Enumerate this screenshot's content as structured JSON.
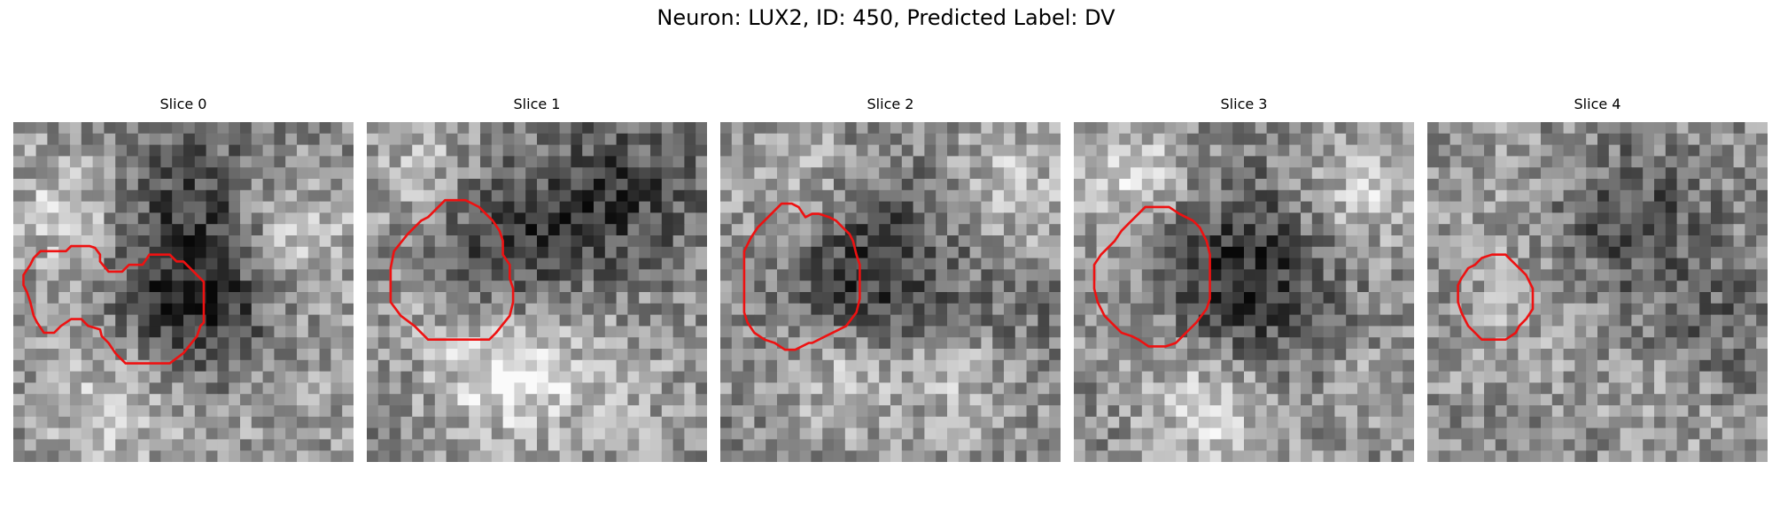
{
  "title": "Neuron: LUX2, ID: 450, Predicted Label: DV",
  "outline_color": "#ee1111",
  "panels": [
    {
      "label": "Slice 0",
      "seed": 11,
      "blobs": [
        [
          0.15,
          0.25,
          4,
          0.25
        ],
        [
          0.85,
          0.35,
          4,
          0.25
        ],
        [
          0.55,
          0.55,
          5,
          -0.45
        ],
        [
          0.5,
          0.2,
          5,
          -0.25
        ],
        [
          0.3,
          0.85,
          5,
          0.22
        ],
        [
          0.8,
          0.8,
          5,
          0.12
        ]
      ],
      "contour": [
        [
          15.5,
          51
        ],
        [
          17,
          49.5
        ],
        [
          22.5,
          49.5
        ],
        [
          24,
          50
        ],
        [
          25.5,
          52
        ],
        [
          25.5,
          54
        ],
        [
          28,
          57
        ],
        [
          32,
          57
        ],
        [
          34,
          55
        ],
        [
          38,
          55
        ],
        [
          40,
          52
        ],
        [
          46,
          52
        ],
        [
          48,
          54
        ],
        [
          50,
          54
        ],
        [
          56,
          60
        ],
        [
          56,
          72
        ],
        [
          55,
          73
        ],
        [
          54,
          76
        ],
        [
          50,
          81
        ],
        [
          46,
          84
        ],
        [
          33,
          84
        ],
        [
          31,
          82
        ],
        [
          30,
          81
        ],
        [
          28,
          78
        ],
        [
          26,
          76
        ],
        [
          25.5,
          74
        ],
        [
          22,
          73
        ],
        [
          20,
          71
        ],
        [
          17,
          71
        ],
        [
          14,
          73
        ],
        [
          12,
          75
        ],
        [
          9,
          75
        ],
        [
          7,
          72
        ],
        [
          6,
          70
        ],
        [
          5,
          66
        ],
        [
          4,
          63
        ],
        [
          3,
          61
        ],
        [
          3,
          58
        ],
        [
          5,
          55
        ],
        [
          6,
          53
        ],
        [
          8,
          51
        ]
      ]
    },
    {
      "label": "Slice 1",
      "seed": 23,
      "blobs": [
        [
          0.15,
          0.12,
          4,
          0.18
        ],
        [
          0.4,
          0.35,
          5,
          -0.3
        ],
        [
          0.75,
          0.2,
          5,
          -0.3
        ],
        [
          0.4,
          0.75,
          4,
          0.35
        ],
        [
          0.7,
          0.8,
          5,
          0.15
        ],
        [
          0.2,
          0.55,
          4,
          0.1
        ]
      ],
      "contour": [
        [
          8,
          51
        ],
        [
          12,
          46
        ],
        [
          16,
          42
        ],
        [
          18,
          41
        ],
        [
          21,
          38
        ],
        [
          23,
          36
        ],
        [
          29,
          36
        ],
        [
          33,
          38
        ],
        [
          37,
          42
        ],
        [
          39,
          45
        ],
        [
          40,
          48
        ],
        [
          40,
          52
        ],
        [
          42,
          55
        ],
        [
          42,
          59
        ],
        [
          43,
          62
        ],
        [
          43,
          66
        ],
        [
          42,
          70
        ],
        [
          38,
          75
        ],
        [
          36,
          77
        ],
        [
          18,
          77
        ],
        [
          14,
          73
        ],
        [
          10,
          70
        ],
        [
          7,
          66
        ],
        [
          7,
          56
        ]
      ]
    },
    {
      "label": "Slice 2",
      "seed": 37,
      "blobs": [
        [
          0.2,
          0.15,
          4,
          0.2
        ],
        [
          0.85,
          0.2,
          4,
          0.22
        ],
        [
          0.45,
          0.45,
          6,
          -0.35
        ],
        [
          0.35,
          0.75,
          4,
          0.25
        ],
        [
          0.7,
          0.75,
          4,
          0.2
        ],
        [
          0.9,
          0.6,
          4,
          -0.1
        ]
      ],
      "contour": [
        [
          9,
          47
        ],
        [
          11,
          44
        ],
        [
          14,
          41
        ],
        [
          16,
          39
        ],
        [
          18,
          37
        ],
        [
          21,
          37
        ],
        [
          23,
          38
        ],
        [
          25,
          41
        ],
        [
          27,
          40
        ],
        [
          29,
          40
        ],
        [
          32,
          41
        ],
        [
          34,
          42
        ],
        [
          36,
          44
        ],
        [
          38,
          46
        ],
        [
          39,
          48
        ],
        [
          40,
          52
        ],
        [
          41,
          55
        ],
        [
          41,
          65
        ],
        [
          40,
          69
        ],
        [
          37,
          73
        ],
        [
          35,
          74
        ],
        [
          31,
          76
        ],
        [
          27,
          78
        ],
        [
          26,
          78
        ],
        [
          22,
          80
        ],
        [
          19,
          80
        ],
        [
          16,
          78
        ],
        [
          13,
          77
        ],
        [
          10,
          75
        ],
        [
          8,
          72
        ],
        [
          7,
          69
        ],
        [
          7,
          51
        ]
      ]
    },
    {
      "label": "Slice 3",
      "seed": 53,
      "blobs": [
        [
          0.15,
          0.15,
          4,
          0.3
        ],
        [
          0.85,
          0.2,
          4,
          0.25
        ],
        [
          0.5,
          0.45,
          6,
          -0.4
        ],
        [
          0.4,
          0.85,
          4,
          0.3
        ],
        [
          0.2,
          0.55,
          4,
          0.1
        ],
        [
          0.9,
          0.8,
          4,
          0.1
        ]
      ],
      "contour": [
        [
          8,
          52
        ],
        [
          12,
          48
        ],
        [
          14,
          45
        ],
        [
          16,
          43
        ],
        [
          19,
          40
        ],
        [
          21,
          38
        ],
        [
          28,
          38
        ],
        [
          31,
          40
        ],
        [
          35,
          42
        ],
        [
          37,
          44
        ],
        [
          39,
          48
        ],
        [
          40,
          52
        ],
        [
          40,
          65
        ],
        [
          39,
          68
        ],
        [
          36,
          72
        ],
        [
          33,
          75
        ],
        [
          30,
          78
        ],
        [
          27,
          79
        ],
        [
          22,
          79
        ],
        [
          19,
          77
        ],
        [
          17,
          76
        ],
        [
          14,
          75
        ],
        [
          12,
          73
        ],
        [
          9,
          70
        ],
        [
          7,
          66
        ],
        [
          6,
          62
        ],
        [
          6,
          55
        ]
      ]
    },
    {
      "label": "Slice 4",
      "seed": 71,
      "blobs": [
        [
          0.6,
          0.3,
          5,
          -0.25
        ],
        [
          0.3,
          0.55,
          5,
          0.12
        ],
        [
          0.85,
          0.6,
          4,
          -0.15
        ],
        [
          0.2,
          0.15,
          4,
          0.1
        ],
        [
          0.7,
          0.85,
          4,
          0.1
        ]
      ],
      "contour": [
        [
          10,
          59
        ],
        [
          12,
          56
        ],
        [
          14,
          55
        ],
        [
          16,
          53
        ],
        [
          19,
          52
        ],
        [
          23,
          52
        ],
        [
          25,
          54
        ],
        [
          27,
          56
        ],
        [
          29,
          58
        ],
        [
          30,
          60
        ],
        [
          31,
          62
        ],
        [
          31,
          68
        ],
        [
          29,
          71
        ],
        [
          27,
          73
        ],
        [
          26,
          75
        ],
        [
          23,
          77
        ],
        [
          16,
          77
        ],
        [
          14,
          75
        ],
        [
          12,
          73
        ],
        [
          11,
          71
        ],
        [
          10,
          69
        ],
        [
          9,
          66
        ],
        [
          9,
          61
        ]
      ]
    }
  ]
}
